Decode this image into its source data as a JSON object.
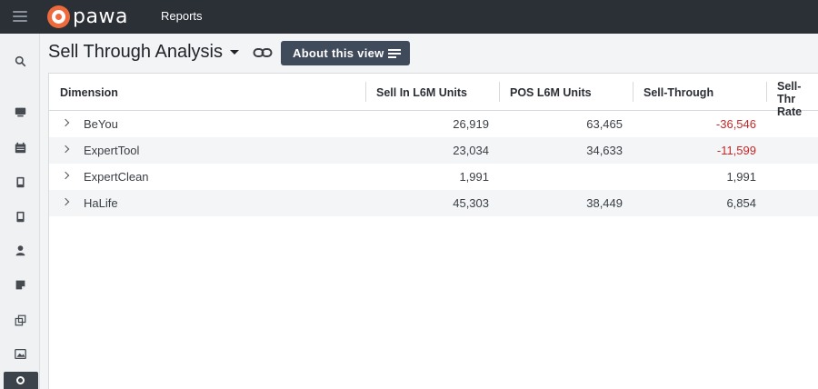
{
  "brand": {
    "name": "pawa"
  },
  "topnav": {
    "reports": "Reports"
  },
  "view": {
    "title": "Sell Through Analysis",
    "about_label": "About this view"
  },
  "table": {
    "columns": [
      "Dimension",
      "Sell In L6M Units",
      "POS L6M Units",
      "Sell-Through",
      "Sell-Thr",
      "Rate"
    ],
    "rows": [
      {
        "dimension": "BeYou",
        "sell_in": "26,919",
        "pos": "63,465",
        "sell_through": "-36,546",
        "negative": true
      },
      {
        "dimension": "ExpertTool",
        "sell_in": "23,034",
        "pos": "34,633",
        "sell_through": "-11,599",
        "negative": true
      },
      {
        "dimension": "ExpertClean",
        "sell_in": "1,991",
        "pos": "",
        "sell_through": "1,991",
        "negative": false
      },
      {
        "dimension": "HaLife",
        "sell_in": "45,303",
        "pos": "38,449",
        "sell_through": "6,854",
        "negative": false
      }
    ]
  },
  "sidebar_icons": [
    "search-icon",
    "monitor-icon",
    "calendar-icon",
    "tablet-icon",
    "tablet-alt-icon",
    "user-icon",
    "note-icon",
    "copy-icon",
    "image-icon",
    "help-icon"
  ],
  "colors": {
    "topbar": "#2b2f36",
    "brand": "#ee6a3c",
    "button": "#3f4a5a",
    "negative": "#c42828"
  }
}
